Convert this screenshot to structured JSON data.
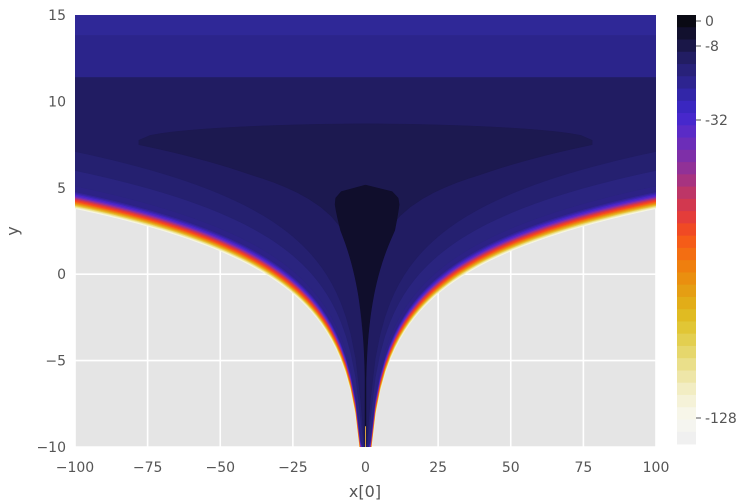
{
  "chart_data": {
    "type": "heatmap",
    "style": "ggplot",
    "xlabel": "x[0]",
    "ylabel": "y",
    "xlim": [
      -100,
      100
    ],
    "ylim": [
      -10,
      15
    ],
    "xticks": [
      -100,
      -75,
      -50,
      -25,
      0,
      25,
      50,
      75,
      100
    ],
    "yticks": [
      -10,
      -5,
      0,
      5,
      10,
      15
    ],
    "xtick_labels": [
      "−100",
      "−75",
      "−50",
      "−25",
      "0",
      "25",
      "50",
      "75",
      "100"
    ],
    "ytick_labels": [
      "−10",
      "−5",
      "0",
      "5",
      "10",
      "15"
    ],
    "colormap": "CMRmap",
    "contour_type": "filled",
    "colorbar": {
      "range": [
        -140,
        0
      ],
      "tick_values": [
        0,
        -8,
        -32,
        -128
      ],
      "tick_labels": [
        "0",
        "-8",
        "-32",
        "-128"
      ],
      "scale": "symlog"
    },
    "grid": true,
    "background_color": "#e5e5e5",
    "grid_color": "#ffffff"
  }
}
